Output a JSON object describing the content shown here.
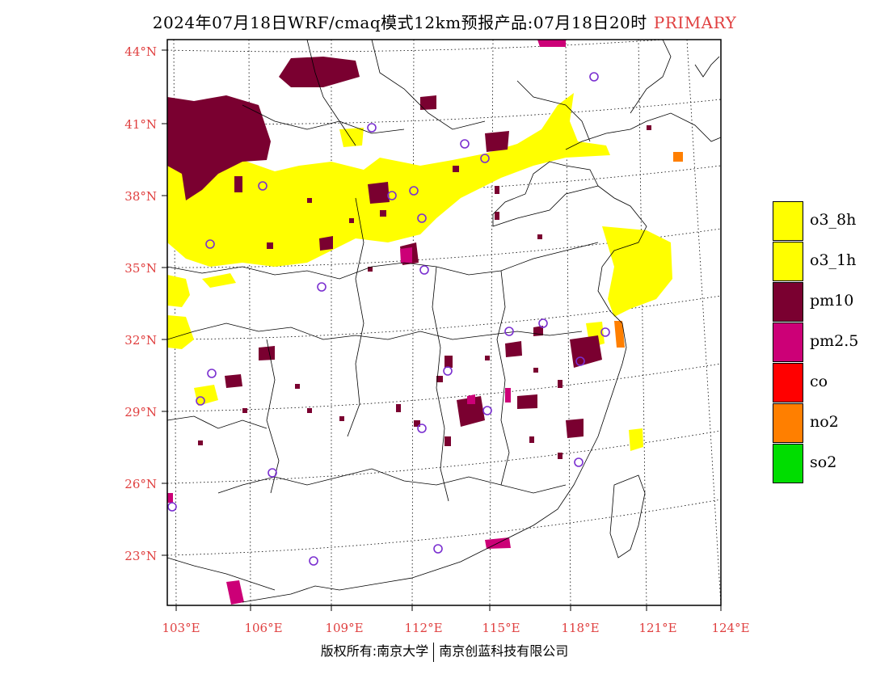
{
  "title": {
    "main": "2024年07月18日WRF/cmaq模式12km预报产品:07月18日20时",
    "tag": "PRIMARY"
  },
  "axes": {
    "lat_labels": [
      "44°N",
      "41°N",
      "38°N",
      "35°N",
      "32°N",
      "29°N",
      "26°N",
      "23°N"
    ],
    "lon_labels": [
      "103°E",
      "106°E",
      "109°E",
      "112°E",
      "115°E",
      "118°E",
      "121°E",
      "124°E"
    ]
  },
  "legend": [
    {
      "label": "o3_8h",
      "color": "#ffff00"
    },
    {
      "label": "o3_1h",
      "color": "#ffff00"
    },
    {
      "label": "pm10",
      "color": "#7a0030"
    },
    {
      "label": "pm2.5",
      "color": "#cc0077"
    },
    {
      "label": "co",
      "color": "#ff0000"
    },
    {
      "label": "no2",
      "color": "#ff7f00"
    },
    {
      "label": "so2",
      "color": "#00dd00"
    }
  ],
  "copyright": {
    "left": "版权所有:南京大学",
    "right": "南京创蓝科技有限公司"
  }
}
